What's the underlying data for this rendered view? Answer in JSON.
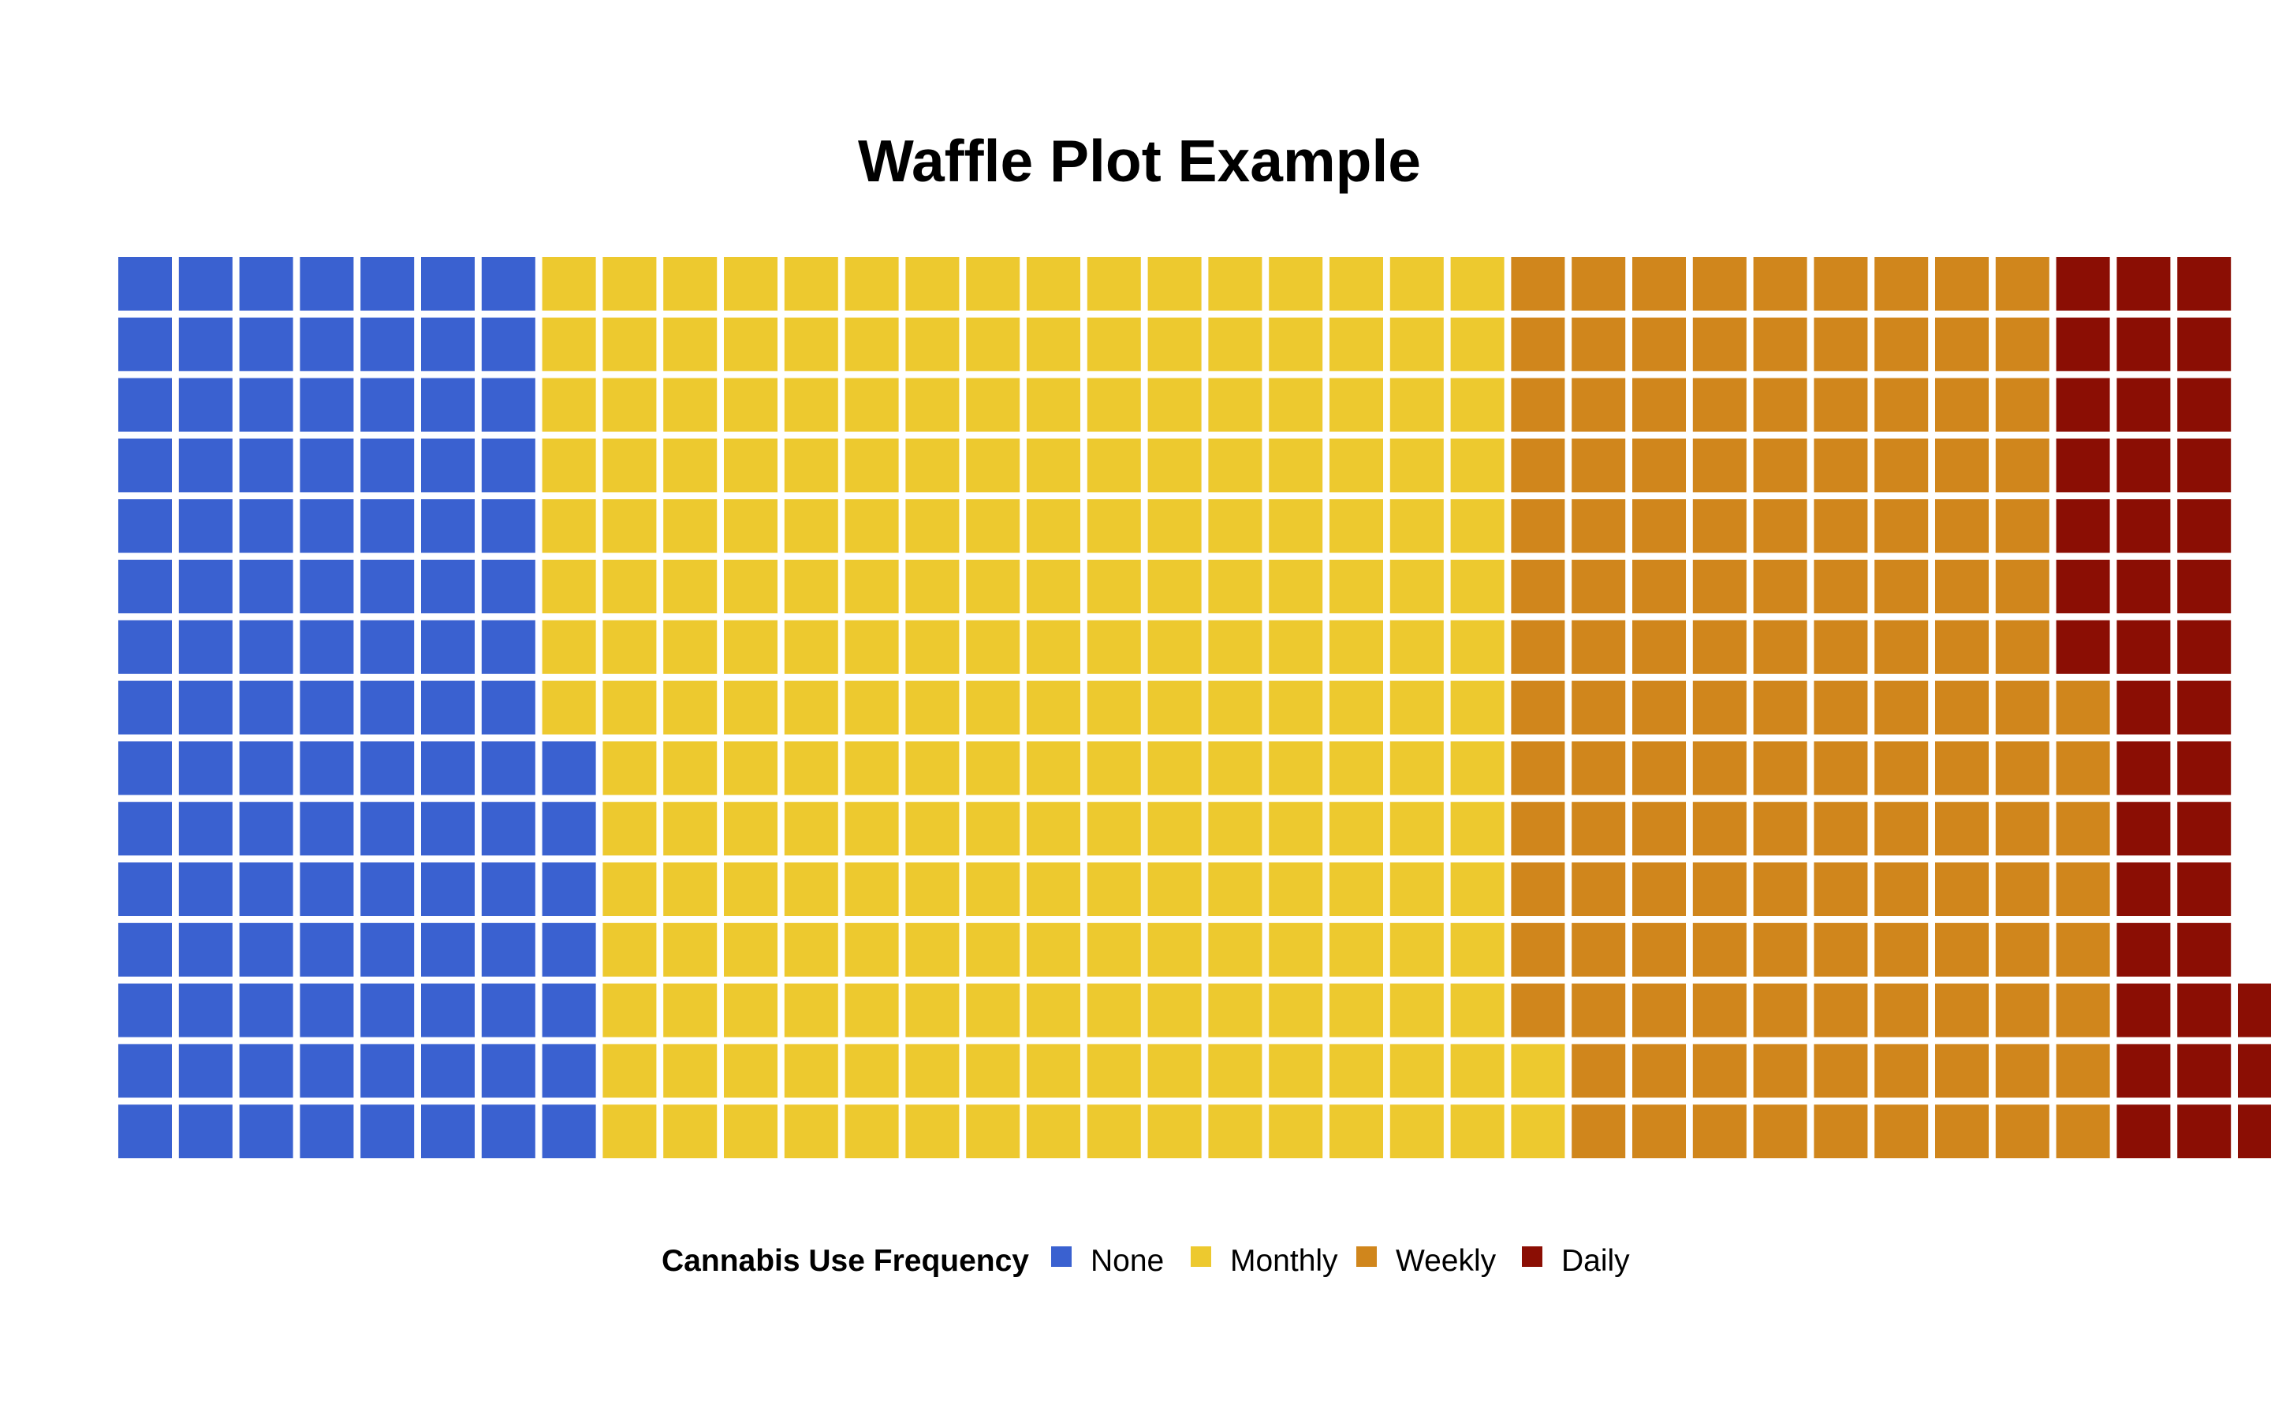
{
  "chart_data": {
    "type": "waffle",
    "title": "Waffle Plot Example",
    "rows": 15,
    "columns": 34,
    "fill_order": "column-major, bottom row first within each column",
    "categories": [
      "None",
      "Monthly",
      "Weekly",
      "Daily"
    ],
    "values": [
      112,
      235,
      141,
      40
    ],
    "colors": [
      "#3a61d0",
      "#edc92f",
      "#d0861c",
      "#8b0e04"
    ],
    "legend": {
      "title": "Cannabis Use Frequency",
      "position": "bottom",
      "items": [
        {
          "label": "None",
          "color": "#3a61d0"
        },
        {
          "label": "Monthly",
          "color": "#edc92f"
        },
        {
          "label": "Weekly",
          "color": "#d0861c"
        },
        {
          "label": "Daily",
          "color": "#8b0e04"
        }
      ]
    },
    "grid": false,
    "axes": false
  }
}
